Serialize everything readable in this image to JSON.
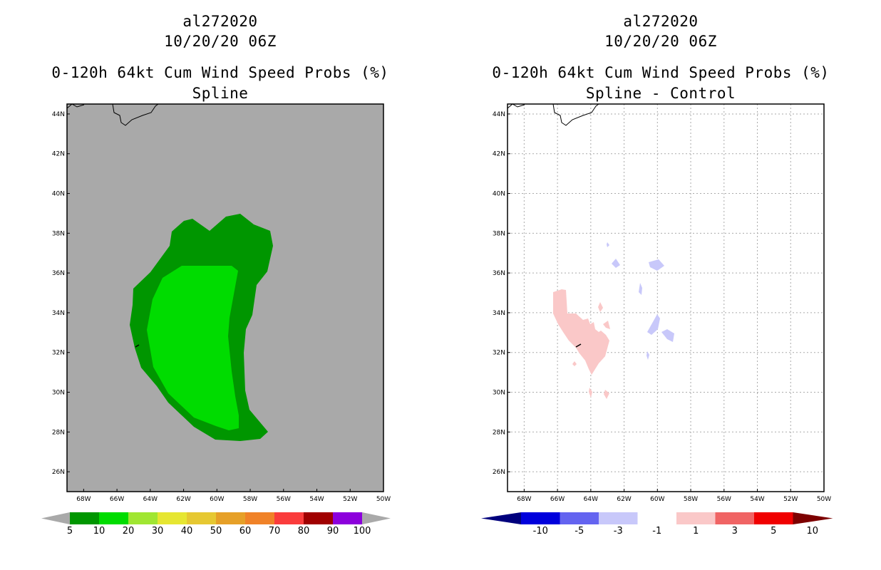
{
  "chart_data": [
    {
      "type": "contour-map",
      "storm_id": "al272020",
      "date": "10/20/20 06Z",
      "title": "0-120h 64kt Cum Wind Speed Probs (%)",
      "subtitle": "Spline",
      "x_ticks": [
        "68W",
        "66W",
        "64W",
        "62W",
        "60W",
        "58W",
        "56W",
        "54W",
        "52W",
        "50W"
      ],
      "y_ticks": [
        "44N",
        "42N",
        "40N",
        "38N",
        "36N",
        "34N",
        "32N",
        "30N",
        "28N",
        "26N"
      ],
      "lon_range": [
        -69,
        -50
      ],
      "lat_range": [
        25,
        44.5
      ],
      "background_color": "#a9a9a9",
      "colorbar": {
        "labels": [
          "5",
          "10",
          "20",
          "30",
          "40",
          "50",
          "60",
          "70",
          "80",
          "90",
          "100"
        ],
        "colors": [
          "#009600",
          "#00dc00",
          "#a0e632",
          "#e6e632",
          "#e6c832",
          "#e6a028",
          "#f08228",
          "#fa3c3c",
          "#a00000",
          "#8c00dc"
        ],
        "end_colors": [
          "#a9a9a9",
          "#a9a9a9"
        ]
      },
      "regions": [
        {
          "level": "5-10%",
          "color": "#009600",
          "lat_extent": [
            27.6,
            39.0
          ],
          "lon_extent": [
            -65.5,
            -56.6
          ]
        },
        {
          "level": "10-20%",
          "color": "#00dc00",
          "lat_extent": [
            28.1,
            36.4
          ],
          "lon_extent": [
            -64.6,
            -58.2
          ]
        }
      ]
    },
    {
      "type": "contour-map",
      "storm_id": "al272020",
      "date": "10/20/20 06Z",
      "title": "0-120h 64kt Cum Wind Speed Probs (%)",
      "subtitle": "Spline - Control",
      "x_ticks": [
        "68W",
        "66W",
        "64W",
        "62W",
        "60W",
        "58W",
        "56W",
        "54W",
        "52W",
        "50W"
      ],
      "y_ticks": [
        "44N",
        "42N",
        "40N",
        "38N",
        "36N",
        "34N",
        "32N",
        "30N",
        "28N",
        "26N"
      ],
      "lon_range": [
        -69,
        -50
      ],
      "lat_range": [
        25,
        44.5
      ],
      "background_color": "#ffffff",
      "grid": true,
      "colorbar": {
        "labels": [
          "-10",
          "-5",
          "-3",
          "-1",
          "1",
          "3",
          "5",
          "10"
        ],
        "colors": [
          "#0000dc",
          "#6464f0",
          "#c8c8fa",
          "#ffffff",
          "#fac8c8",
          "#f06464",
          "#f00000"
        ],
        "end_colors": [
          "#00007d",
          "#7d0000"
        ]
      },
      "regions": [
        {
          "level": "1 to 3",
          "color": "#fac8c8",
          "lat_extent": [
            29.8,
            35.2
          ],
          "lon_extent": [
            -66.6,
            -63.1
          ]
        },
        {
          "level": "-3 to -1",
          "color": "#c8c8fa",
          "lat_extent": [
            31.8,
            37.5
          ],
          "lon_extent": [
            -63.0,
            -59.0
          ]
        }
      ]
    }
  ]
}
